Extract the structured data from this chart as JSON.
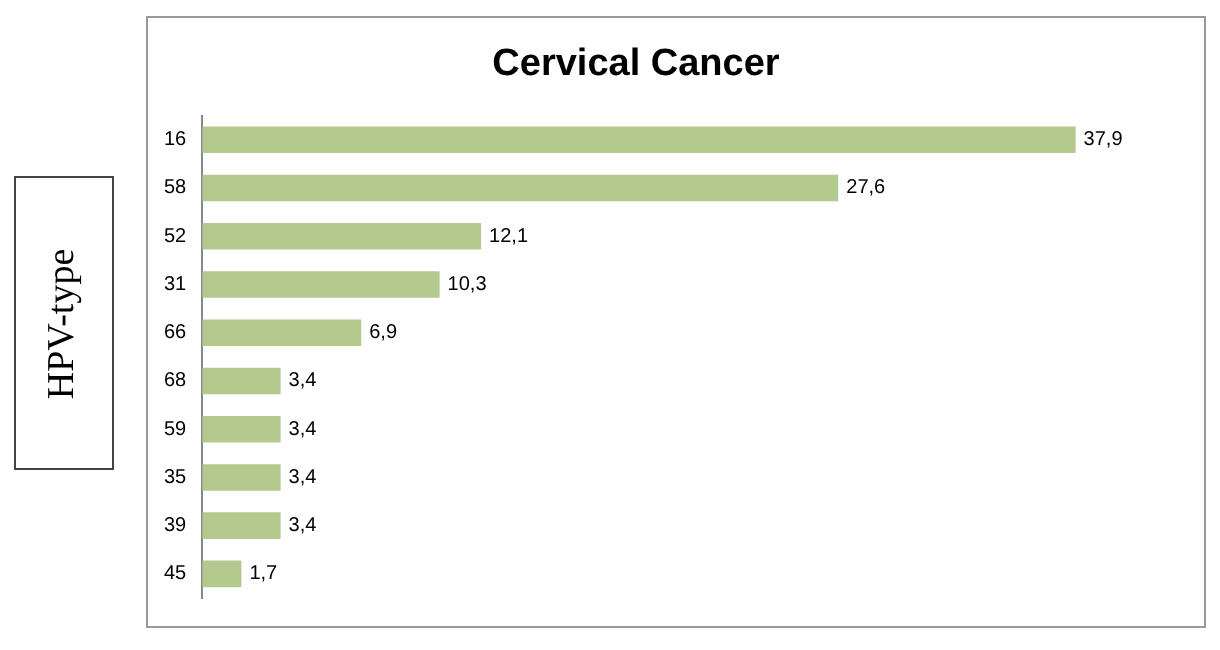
{
  "chart_data": {
    "type": "bar",
    "orientation": "horizontal",
    "title": "Cervical Cancer",
    "ylabel": "HPV-type",
    "categories": [
      "16",
      "58",
      "52",
      "31",
      "66",
      "68",
      "59",
      "35",
      "39",
      "45"
    ],
    "values": [
      37.9,
      27.6,
      12.1,
      10.3,
      6.9,
      3.4,
      3.4,
      3.4,
      3.4,
      1.7
    ],
    "value_labels": [
      "37,9",
      "27,6",
      "12,1",
      "10,3",
      "6,9",
      "3,4",
      "3,4",
      "3,4",
      "3,4",
      "1,7"
    ],
    "color": "#b4c98e"
  }
}
